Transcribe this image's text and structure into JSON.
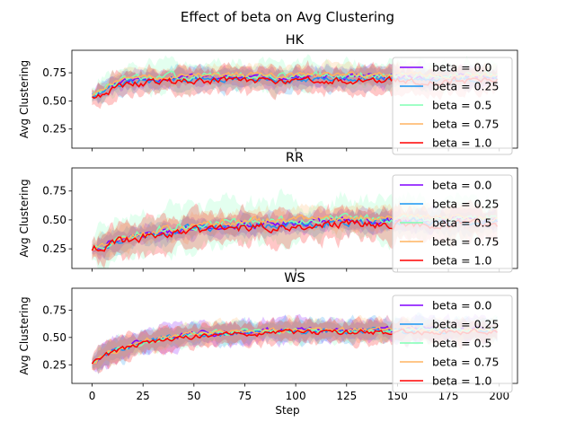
{
  "figure": {
    "suptitle": "Effect of beta on  Avg Clustering",
    "xlabel": "Step"
  },
  "legend_entries": [
    "beta = 0.0",
    "beta = 0.25",
    "beta = 0.5",
    "beta = 0.75",
    "beta = 1.0"
  ],
  "series_colors": [
    "#8000ff",
    "#1996f3",
    "#80ffb4",
    "#ffb360",
    "#ff0000"
  ],
  "chart_data": [
    {
      "type": "line",
      "title": "HK",
      "ylabel": "Avg Clustering",
      "xlim": [
        -9.95,
        208.95
      ],
      "ylim": [
        0.08,
        0.95
      ],
      "xticks": [
        0,
        25,
        50,
        75,
        100,
        125,
        150,
        175,
        200
      ],
      "yticks": [
        0.25,
        0.5,
        0.75
      ],
      "ytick_labels": [
        "0.25",
        "0.50",
        "0.75"
      ],
      "show_xtick_labels": false,
      "grid": false,
      "legend": "upper-right",
      "x_range": [
        0,
        199
      ],
      "series": [
        {
          "name": "beta = 0.0",
          "color": "#8000ff",
          "start": 0.57,
          "low": 0.53,
          "plateau": 0.71,
          "rate": 10,
          "noise": 0.02,
          "band": 0.08,
          "seed": 11
        },
        {
          "name": "beta = 0.25",
          "color": "#1996f3",
          "start": 0.55,
          "low": 0.52,
          "plateau": 0.69,
          "rate": 10,
          "noise": 0.02,
          "band": 0.09,
          "seed": 12
        },
        {
          "name": "beta = 0.5",
          "color": "#80ffb4",
          "start": 0.56,
          "low": 0.52,
          "plateau": 0.72,
          "rate": 10,
          "noise": 0.025,
          "band": 0.12,
          "seed": 13
        },
        {
          "name": "beta = 0.75",
          "color": "#ffb360",
          "start": 0.56,
          "low": 0.53,
          "plateau": 0.73,
          "rate": 10,
          "noise": 0.02,
          "band": 0.08,
          "seed": 14
        },
        {
          "name": "beta = 1.0",
          "color": "#ff0000",
          "start": 0.55,
          "low": 0.5,
          "plateau": 0.68,
          "rate": 12,
          "noise": 0.025,
          "band": 0.11,
          "seed": 15
        }
      ]
    },
    {
      "type": "line",
      "title": "RR",
      "ylabel": "Avg Clustering",
      "xlim": [
        -9.95,
        208.95
      ],
      "ylim": [
        0.08,
        0.95
      ],
      "xticks": [
        0,
        25,
        50,
        75,
        100,
        125,
        150,
        175,
        200
      ],
      "yticks": [
        0.25,
        0.5,
        0.75
      ],
      "ytick_labels": [
        "0.25",
        "0.50",
        "0.75"
      ],
      "show_xtick_labels": false,
      "grid": false,
      "legend": "upper-right",
      "x_range": [
        0,
        199
      ],
      "series": [
        {
          "name": "beta = 0.0",
          "color": "#8000ff",
          "start": 0.25,
          "low": 0.25,
          "plateau": 0.5,
          "rate": 40,
          "noise": 0.025,
          "band": 0.08,
          "seed": 21
        },
        {
          "name": "beta = 0.25",
          "color": "#1996f3",
          "start": 0.25,
          "low": 0.25,
          "plateau": 0.49,
          "rate": 40,
          "noise": 0.025,
          "band": 0.08,
          "seed": 22
        },
        {
          "name": "beta = 0.5",
          "color": "#80ffb4",
          "start": 0.25,
          "low": 0.25,
          "plateau": 0.52,
          "rate": 35,
          "noise": 0.03,
          "band": 0.17,
          "seed": 23
        },
        {
          "name": "beta = 0.75",
          "color": "#ffb360",
          "start": 0.25,
          "low": 0.25,
          "plateau": 0.53,
          "rate": 40,
          "noise": 0.025,
          "band": 0.09,
          "seed": 24
        },
        {
          "name": "beta = 1.0",
          "color": "#ff0000",
          "start": 0.25,
          "low": 0.25,
          "plateau": 0.47,
          "rate": 40,
          "noise": 0.03,
          "band": 0.13,
          "seed": 25
        }
      ]
    },
    {
      "type": "line",
      "title": "WS",
      "ylabel": "Avg Clustering",
      "xlim": [
        -9.95,
        208.95
      ],
      "ylim": [
        0.08,
        0.95
      ],
      "xticks": [
        0,
        25,
        50,
        75,
        100,
        125,
        150,
        175,
        200
      ],
      "yticks": [
        0.25,
        0.5,
        0.75
      ],
      "ytick_labels": [
        "0.25",
        "0.50",
        "0.75"
      ],
      "show_xtick_labels": true,
      "grid": false,
      "legend": "upper-right",
      "x_range": [
        0,
        199
      ],
      "series": [
        {
          "name": "beta = 0.0",
          "color": "#8000ff",
          "start": 0.27,
          "low": 0.27,
          "plateau": 0.57,
          "rate": 25,
          "noise": 0.02,
          "band": 0.1,
          "seed": 31
        },
        {
          "name": "beta = 0.25",
          "color": "#1996f3",
          "start": 0.27,
          "low": 0.27,
          "plateau": 0.56,
          "rate": 25,
          "noise": 0.02,
          "band": 0.1,
          "seed": 32
        },
        {
          "name": "beta = 0.5",
          "color": "#80ffb4",
          "start": 0.27,
          "low": 0.27,
          "plateau": 0.57,
          "rate": 25,
          "noise": 0.02,
          "band": 0.09,
          "seed": 33
        },
        {
          "name": "beta = 0.75",
          "color": "#ffb360",
          "start": 0.27,
          "low": 0.27,
          "plateau": 0.57,
          "rate": 25,
          "noise": 0.02,
          "band": 0.09,
          "seed": 34
        },
        {
          "name": "beta = 1.0",
          "color": "#ff0000",
          "start": 0.27,
          "low": 0.27,
          "plateau": 0.55,
          "rate": 27,
          "noise": 0.02,
          "band": 0.1,
          "seed": 35
        }
      ]
    }
  ]
}
